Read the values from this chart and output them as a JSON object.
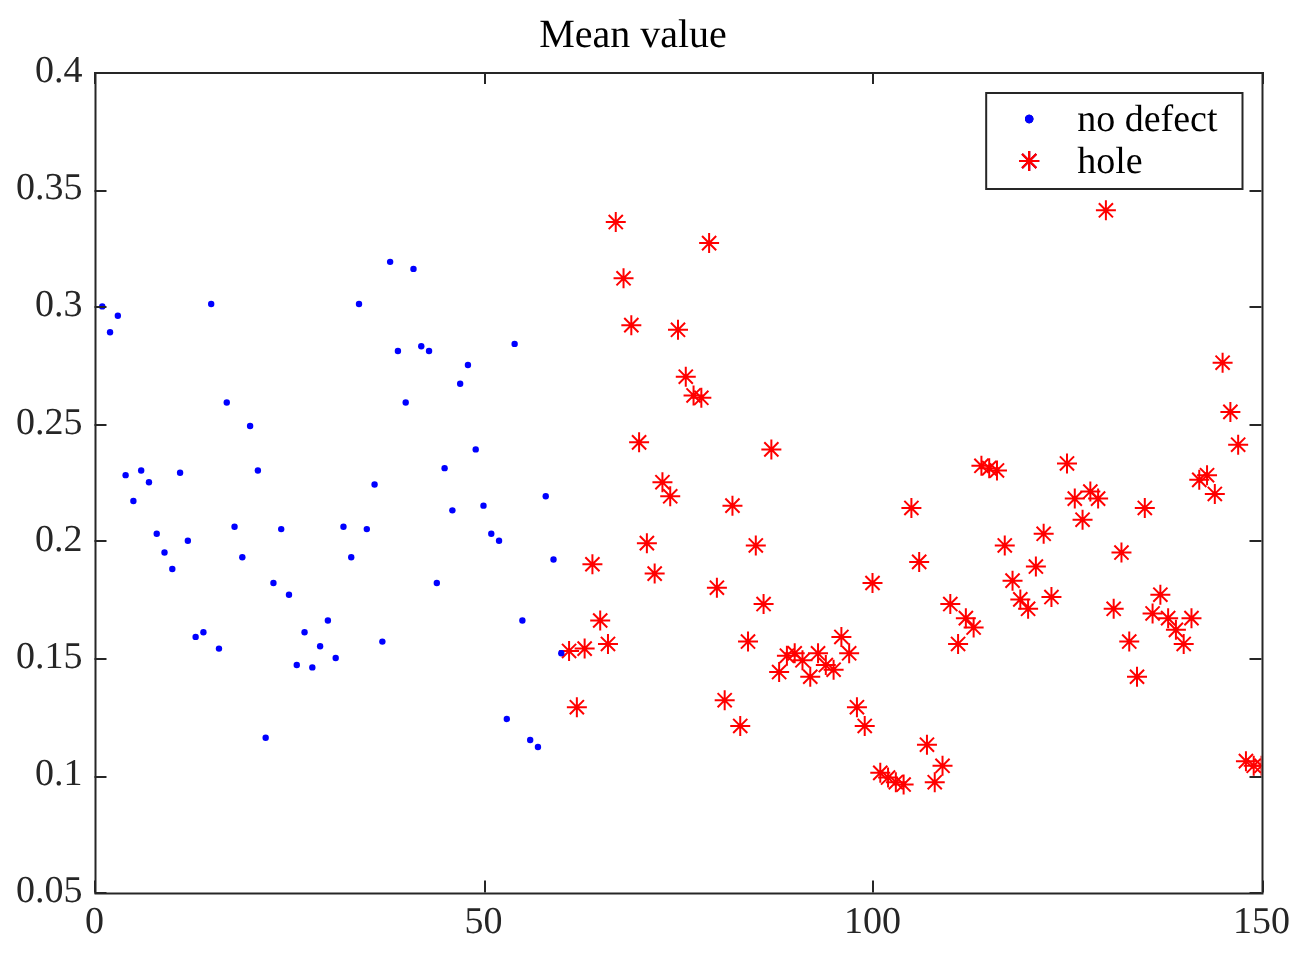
{
  "chart_data": {
    "type": "scatter",
    "title": "Mean value",
    "xlim": [
      0,
      150
    ],
    "xticks": [
      0,
      50,
      100,
      150
    ],
    "ylim": [
      0.05,
      0.4
    ],
    "yticks": [
      0.05,
      0.1,
      0.15,
      0.2,
      0.25,
      0.3,
      0.35,
      0.4
    ],
    "grid": false,
    "legend": "top right",
    "series": [
      {
        "name": "no defect",
        "color": "#0000ff",
        "marker": "circle",
        "x": [
          1,
          2,
          3,
          4,
          5,
          6,
          7,
          8,
          9,
          10,
          11,
          12,
          13,
          14,
          15,
          16,
          17,
          18,
          19,
          20,
          21,
          22,
          23,
          24,
          25,
          26,
          27,
          28,
          29,
          30,
          31,
          32,
          33,
          34,
          35,
          36,
          37,
          38,
          39,
          40,
          41,
          42,
          43,
          44,
          45,
          46,
          47,
          48,
          49,
          50,
          51,
          52,
          53,
          54,
          55,
          56,
          57,
          58,
          59,
          60
        ],
        "values": [
          0.3,
          0.289,
          0.296,
          0.228,
          0.217,
          0.23,
          0.225,
          0.203,
          0.195,
          0.188,
          0.229,
          0.2,
          0.159,
          0.161,
          0.301,
          0.154,
          0.259,
          0.206,
          0.193,
          0.249,
          0.23,
          0.116,
          0.182,
          0.205,
          0.177,
          0.147,
          0.161,
          0.146,
          0.155,
          0.166,
          0.15,
          0.206,
          0.193,
          0.301,
          0.205,
          0.224,
          0.157,
          0.319,
          0.281,
          0.259,
          0.316,
          0.283,
          0.281,
          0.182,
          0.231,
          0.213,
          0.267,
          0.275,
          0.239,
          0.215,
          0.203,
          0.2,
          0.124,
          0.284,
          0.166,
          0.115,
          0.112,
          0.219,
          0.192,
          0.152
        ]
      },
      {
        "name": "hole",
        "color": "#ff0000",
        "marker": "cross",
        "x": [
          61,
          62,
          63,
          64,
          65,
          66,
          67,
          68,
          69,
          70,
          71,
          72,
          73,
          74,
          75,
          76,
          77,
          78,
          79,
          80,
          81,
          82,
          83,
          84,
          85,
          86,
          87,
          88,
          89,
          90,
          91,
          92,
          93,
          94,
          95,
          96,
          97,
          98,
          99,
          100,
          101,
          102,
          103,
          104,
          105,
          106,
          107,
          108,
          109,
          110,
          111,
          112,
          113,
          114,
          115,
          116,
          117,
          118,
          119,
          120,
          121,
          122,
          123,
          125,
          126,
          127,
          128,
          129,
          130,
          131,
          132,
          133,
          134,
          135,
          136,
          137,
          138,
          139,
          140,
          141,
          142,
          143,
          144,
          145,
          146,
          147,
          148,
          149,
          150
        ],
        "values": [
          0.153,
          0.129,
          0.154,
          0.19,
          0.166,
          0.156,
          0.336,
          0.312,
          0.292,
          0.242,
          0.199,
          0.186,
          0.225,
          0.219,
          0.29,
          0.27,
          0.262,
          0.261,
          0.327,
          0.18,
          0.132,
          0.215,
          0.121,
          0.157,
          0.198,
          0.173,
          0.239,
          0.144,
          0.151,
          0.152,
          0.149,
          0.142,
          0.152,
          0.147,
          0.145,
          0.159,
          0.152,
          0.129,
          0.121,
          0.182,
          0.101,
          0.099,
          0.097,
          0.096,
          0.214,
          0.191,
          0.113,
          0.097,
          0.104,
          0.173,
          0.156,
          0.167,
          0.163,
          0.232,
          0.231,
          0.23,
          0.198,
          0.183,
          0.175,
          0.171,
          0.189,
          0.203,
          0.176,
          0.233,
          0.218,
          0.209,
          0.221,
          0.218,
          0.341,
          0.171,
          0.195,
          0.157,
          0.142,
          0.214,
          0.169,
          0.177,
          0.167,
          0.162,
          0.156,
          0.167,
          0.226,
          0.228,
          0.22,
          0.276,
          0.255,
          0.241,
          0.106,
          0.104,
          0.104
        ]
      }
    ]
  }
}
